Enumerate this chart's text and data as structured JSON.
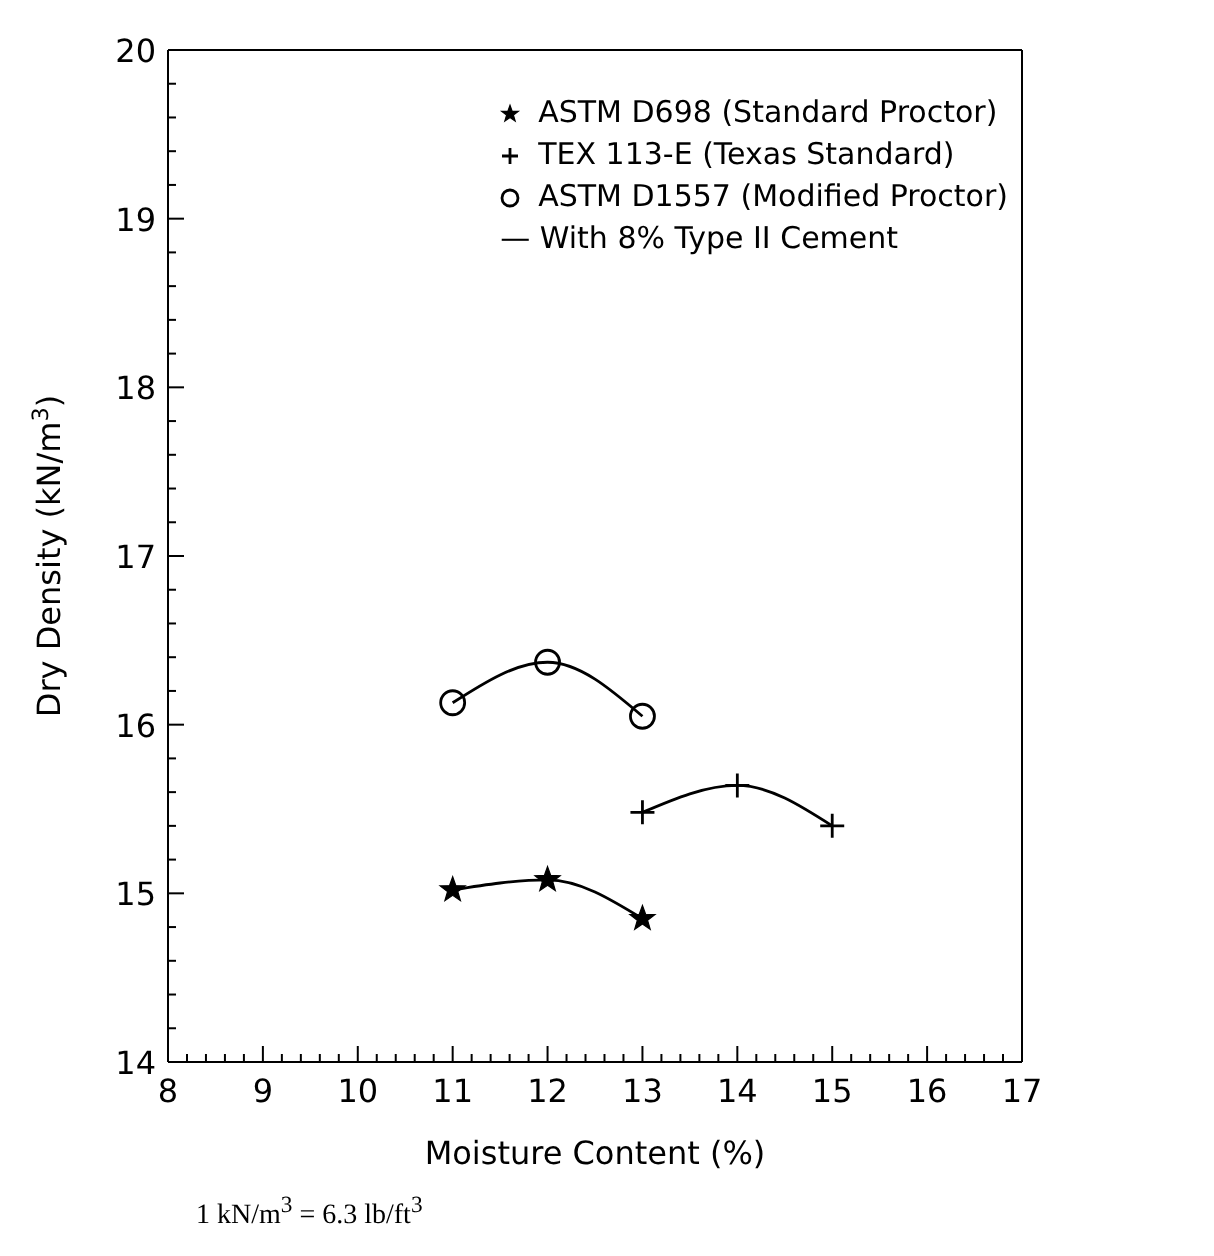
{
  "chart_data": {
    "type": "line",
    "xlabel": "Moisture Content (%)",
    "ylabel": "Dry Density (kN/m$^{3}$)",
    "xlim": [
      8,
      17
    ],
    "ylim": [
      14,
      20
    ],
    "xticks": [
      8,
      {
        "value": 8.2,
        "label": null
      },
      {
        "value": 8.4,
        "label": null
      },
      {
        "value": 8.6,
        "label": null
      },
      {
        "value": 8.8,
        "label": null
      },
      9,
      {
        "value": 9.2,
        "label": null
      },
      {
        "value": 9.4,
        "label": null
      },
      {
        "value": 9.6,
        "label": null
      },
      {
        "value": 9.8,
        "label": null
      },
      10,
      {
        "value": 10.2,
        "label": null
      },
      {
        "value": 10.4,
        "label": null
      },
      {
        "value": 10.6,
        "label": null
      },
      {
        "value": 10.8,
        "label": null
      },
      11,
      {
        "value": 11.2,
        "label": null
      },
      {
        "value": 11.4,
        "label": null
      },
      {
        "value": 11.6,
        "label": null
      },
      {
        "value": 11.8,
        "label": null
      },
      12,
      {
        "value": 12.2,
        "label": null
      },
      {
        "value": 12.4,
        "label": null
      },
      {
        "value": 12.6,
        "label": null
      },
      {
        "value": 12.8,
        "label": null
      },
      13,
      {
        "value": 13.2,
        "label": null
      },
      {
        "value": 13.4,
        "label": null
      },
      {
        "value": 13.6,
        "label": null
      },
      {
        "value": 13.8,
        "label": null
      },
      14,
      {
        "value": 14.2,
        "label": null
      },
      {
        "value": 14.4,
        "label": null
      },
      {
        "value": 14.6,
        "label": null
      },
      {
        "value": 14.8,
        "label": null
      },
      15,
      {
        "value": 15.2,
        "label": null
      },
      {
        "value": 15.4,
        "label": null
      },
      {
        "value": 15.6,
        "label": null
      },
      {
        "value": 15.8,
        "label": null
      },
      16,
      {
        "value": 16.2,
        "label": null
      },
      {
        "value": 16.4,
        "label": null
      },
      {
        "value": 16.6,
        "label": null
      },
      {
        "value": 16.8,
        "label": null
      },
      17
    ],
    "yticks": [
      14,
      {
        "value": 14.2,
        "label": null
      },
      {
        "value": 14.4,
        "label": null
      },
      {
        "value": 14.6,
        "label": null
      },
      {
        "value": 14.8,
        "label": null
      },
      15,
      {
        "value": 15.2,
        "label": null
      },
      {
        "value": 15.4,
        "label": null
      },
      {
        "value": 15.6,
        "label": null
      },
      {
        "value": 15.8,
        "label": null
      },
      16,
      {
        "value": 16.2,
        "label": null
      },
      {
        "value": 16.4,
        "label": null
      },
      {
        "value": 16.6,
        "label": null
      },
      {
        "value": 16.8,
        "label": null
      },
      17,
      {
        "value": 17.2,
        "label": null
      },
      {
        "value": 17.4,
        "label": null
      },
      {
        "value": 17.6,
        "label": null
      },
      {
        "value": 17.8,
        "label": null
      },
      18,
      {
        "value": 18.2,
        "label": null
      },
      {
        "value": 18.4,
        "label": null
      },
      {
        "value": 18.6,
        "label": null
      },
      {
        "value": 18.8,
        "label": null
      },
      19,
      {
        "value": 19.2,
        "label": null
      },
      {
        "value": 19.4,
        "label": null
      },
      {
        "value": 19.6,
        "label": null
      },
      {
        "value": 19.8,
        "label": null
      },
      20
    ],
    "grid": false,
    "legend": "top right",
    "line_style": "solid",
    "series": [
      {
        "name": "ASTM D698 (Standard Proctor)",
        "color": "#000000",
        "marker": "star",
        "x": [
          11,
          12,
          13
        ],
        "values": [
          15.02,
          15.08,
          14.85
        ]
      },
      {
        "name": "TEX 113-E (Texas Standard)",
        "color": "#000000",
        "marker": "cross",
        "x": [
          13,
          14,
          15
        ],
        "values": [
          15.48,
          15.64,
          15.4
        ]
      },
      {
        "name": "ASTM D1557 (Modified Proctor)",
        "color": "#000000",
        "marker": "circle",
        "x": [
          11,
          12,
          13
        ],
        "values": [
          16.13,
          16.37,
          16.05
        ]
      }
    ],
    "annotations": [
      "— With 8% Type II Cement",
      "1 kN/m$^{3}$ = 6.3 lb/ft$^{3}$"
    ]
  }
}
